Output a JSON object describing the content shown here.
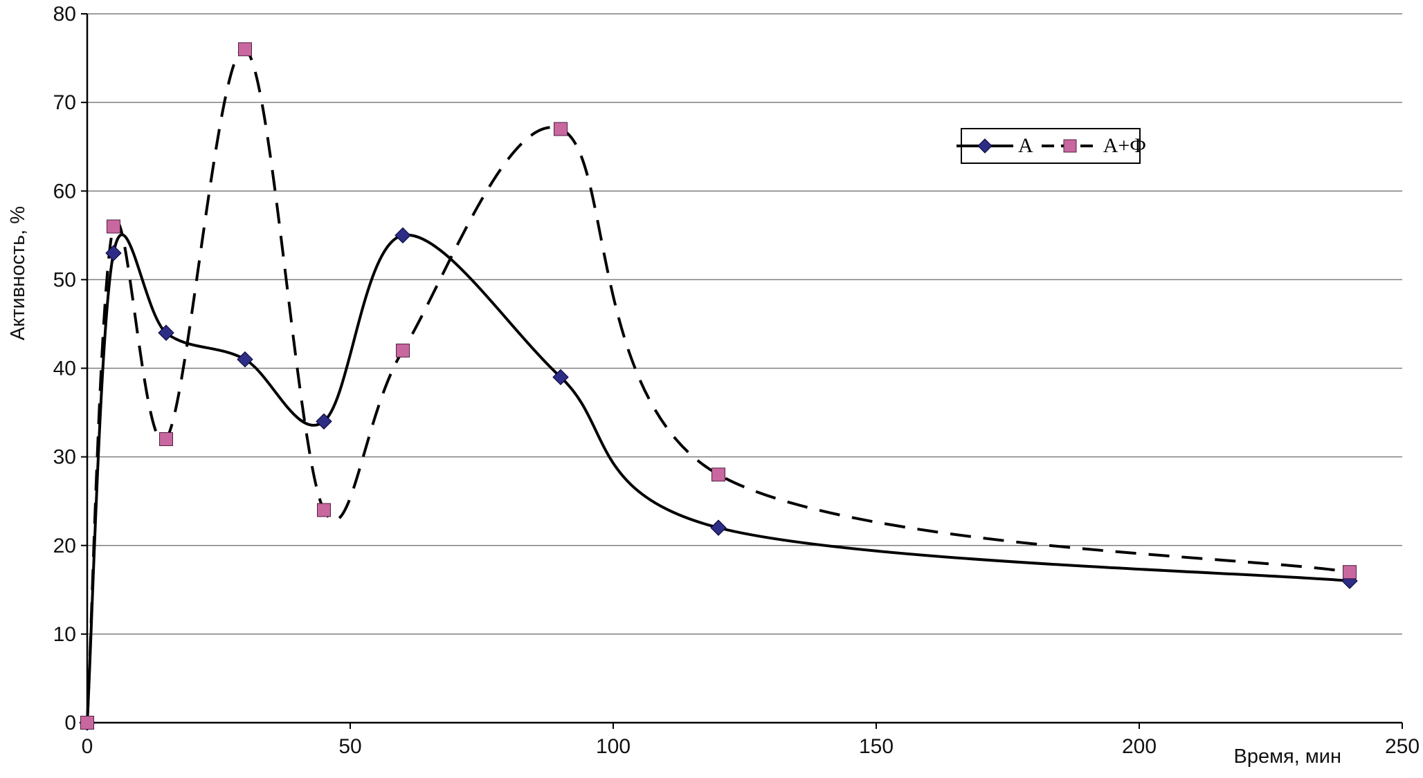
{
  "chart_data": {
    "type": "line",
    "title": "",
    "xlabel": "Время, мин",
    "ylabel": "Активность, %",
    "xlim": [
      0,
      250
    ],
    "ylim": [
      0,
      80
    ],
    "xticks": [
      0,
      50,
      100,
      150,
      200,
      250
    ],
    "yticks": [
      0,
      10,
      20,
      30,
      40,
      50,
      60,
      70,
      80
    ],
    "grid": "horizontal",
    "legend_position": "top-right",
    "x": [
      0,
      5,
      15,
      30,
      45,
      60,
      90,
      120,
      240
    ],
    "series": [
      {
        "name": "А",
        "marker": "diamond",
        "line_style": "solid",
        "line_color": "#000000",
        "marker_color": "#2d2d86",
        "marker_edge": "#000033",
        "values": [
          0,
          53,
          44,
          41,
          34,
          55,
          39,
          22,
          16
        ]
      },
      {
        "name": "А+Ф",
        "marker": "square",
        "line_style": "dashed",
        "line_color": "#000000",
        "marker_color": "#c9679f",
        "marker_edge": "#4d2040",
        "values": [
          0,
          56,
          32,
          76,
          24,
          42,
          67,
          28,
          17
        ]
      }
    ]
  }
}
